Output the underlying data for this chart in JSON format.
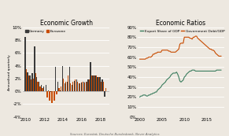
{
  "title1": "Economic Growth",
  "title2": "Economic Ratios",
  "ylabel1": "Annualised quarterly",
  "source": "Sources: Eurostat, Deutsche Bundesbank, Never Analytics",
  "bar_years": [
    2010,
    2010.25,
    2010.5,
    2010.75,
    2011,
    2011.25,
    2011.5,
    2011.75,
    2012,
    2012.25,
    2012.5,
    2012.75,
    2013,
    2013.25,
    2013.5,
    2013.75,
    2014,
    2014.25,
    2014.5,
    2014.75,
    2015,
    2015.25,
    2015.5,
    2015.75,
    2016,
    2016.25,
    2016.5,
    2016.75,
    2017,
    2017.25,
    2017.5,
    2017.75,
    2018,
    2018.25,
    2018.5
  ],
  "germany": [
    8.5,
    3.0,
    2.5,
    2.8,
    7.0,
    2.2,
    1.5,
    1.0,
    0.8,
    1.0,
    0.2,
    -0.1,
    0.0,
    3.8,
    1.5,
    0.2,
    4.0,
    1.2,
    1.5,
    3.8,
    1.0,
    1.6,
    1.8,
    1.2,
    1.4,
    1.5,
    1.5,
    1.8,
    4.5,
    2.5,
    2.5,
    2.2,
    2.2,
    1.8,
    -0.8
  ],
  "eurozone": [
    3.5,
    2.5,
    1.8,
    2.0,
    2.8,
    1.5,
    0.8,
    0.5,
    0.0,
    -1.0,
    -1.5,
    -1.8,
    -1.5,
    -0.5,
    0.5,
    0.8,
    2.0,
    1.5,
    2.5,
    1.2,
    1.5,
    1.8,
    1.5,
    1.2,
    1.5,
    1.4,
    1.5,
    1.8,
    2.5,
    2.5,
    2.5,
    2.2,
    1.5,
    1.5,
    0.5
  ],
  "germany_color": "#3a3a3a",
  "eurozone_color": "#c84b00",
  "ylim1": [
    -4,
    10
  ],
  "yticks1": [
    -4,
    -2,
    0,
    2,
    4,
    6,
    8,
    10
  ],
  "xlim1": [
    2009.7,
    2019.0
  ],
  "xticks1": [
    2010,
    2012,
    2014,
    2016,
    2018
  ],
  "export_years": [
    2000,
    2000.25,
    2000.5,
    2000.75,
    2001,
    2001.25,
    2001.5,
    2001.75,
    2002,
    2002.25,
    2002.5,
    2002.75,
    2003,
    2003.25,
    2003.5,
    2003.75,
    2004,
    2004.25,
    2004.5,
    2004.75,
    2005,
    2005.25,
    2005.5,
    2005.75,
    2006,
    2006.25,
    2006.5,
    2006.75,
    2007,
    2007.25,
    2007.5,
    2007.75,
    2008,
    2008.25,
    2008.5,
    2008.75,
    2009,
    2009.25,
    2009.5,
    2009.75,
    2010,
    2010.25,
    2010.5,
    2010.75,
    2011,
    2011.25,
    2011.5,
    2011.75,
    2012,
    2012.25,
    2012.5,
    2012.75,
    2013,
    2013.25,
    2013.5,
    2013.75,
    2014,
    2014.25,
    2014.5,
    2014.75,
    2015,
    2015.25,
    2015.5,
    2015.75,
    2016,
    2016.25,
    2016.5,
    2016.75,
    2017,
    2017.25,
    2017.5,
    2017.75,
    2018,
    2018.25
  ],
  "export_gdp": [
    20,
    21,
    21,
    22,
    22,
    22,
    21,
    21,
    22,
    22,
    23,
    23,
    24,
    24,
    25,
    25,
    27,
    28,
    29,
    30,
    32,
    33,
    34,
    35,
    37,
    38,
    39,
    40,
    42,
    43,
    44,
    44,
    44,
    45,
    43,
    40,
    36,
    35,
    36,
    37,
    40,
    41,
    43,
    44,
    45,
    46,
    46,
    47,
    47,
    47,
    46,
    46,
    46,
    46,
    46,
    46,
    46,
    46,
    46,
    46,
    46,
    46,
    46,
    46,
    46,
    46,
    46,
    46,
    46,
    47,
    47,
    47,
    47,
    47
  ],
  "debt_years": [
    2000,
    2000.25,
    2000.5,
    2000.75,
    2001,
    2001.25,
    2001.5,
    2001.75,
    2002,
    2002.25,
    2002.5,
    2002.75,
    2003,
    2003.25,
    2003.5,
    2003.75,
    2004,
    2004.25,
    2004.5,
    2004.75,
    2005,
    2005.25,
    2005.5,
    2005.75,
    2006,
    2006.25,
    2006.5,
    2006.75,
    2007,
    2007.25,
    2007.5,
    2007.75,
    2008,
    2008.25,
    2008.5,
    2008.75,
    2009,
    2009.25,
    2009.5,
    2009.75,
    2010,
    2010.25,
    2010.5,
    2010.75,
    2011,
    2011.25,
    2011.5,
    2011.75,
    2012,
    2012.25,
    2012.5,
    2012.75,
    2013,
    2013.25,
    2013.5,
    2013.75,
    2014,
    2014.25,
    2014.5,
    2014.75,
    2015,
    2015.25,
    2015.5,
    2015.75,
    2016,
    2016.25,
    2016.5,
    2016.75,
    2017,
    2017.25,
    2017.5,
    2017.75,
    2018,
    2018.25
  ],
  "govt_debt_gdp": [
    58,
    58,
    58,
    58,
    58,
    58,
    59,
    59,
    60,
    60,
    60,
    61,
    63,
    63,
    64,
    64,
    65,
    65,
    65,
    65,
    67,
    67,
    67,
    67,
    67,
    67,
    66,
    66,
    65,
    65,
    65,
    65,
    65,
    66,
    67,
    68,
    73,
    74,
    74,
    74,
    80,
    80,
    80,
    80,
    80,
    79,
    79,
    78,
    80,
    80,
    81,
    81,
    79,
    78,
    77,
    76,
    75,
    74,
    73,
    72,
    71,
    70,
    69,
    68,
    68,
    67,
    67,
    66,
    64,
    63,
    62,
    61,
    61,
    61
  ],
  "export_color": "#3a7d5e",
  "debt_color": "#c84b00",
  "ylim2": [
    0,
    90
  ],
  "yticks2": [
    0,
    10,
    20,
    30,
    40,
    50,
    60,
    70,
    80,
    90
  ],
  "xlim2": [
    1999.5,
    2019.0
  ],
  "xticks2": [
    2000,
    2005,
    2010,
    2015
  ],
  "bg_color": "#ede8e0",
  "grid_color": "#ffffff"
}
